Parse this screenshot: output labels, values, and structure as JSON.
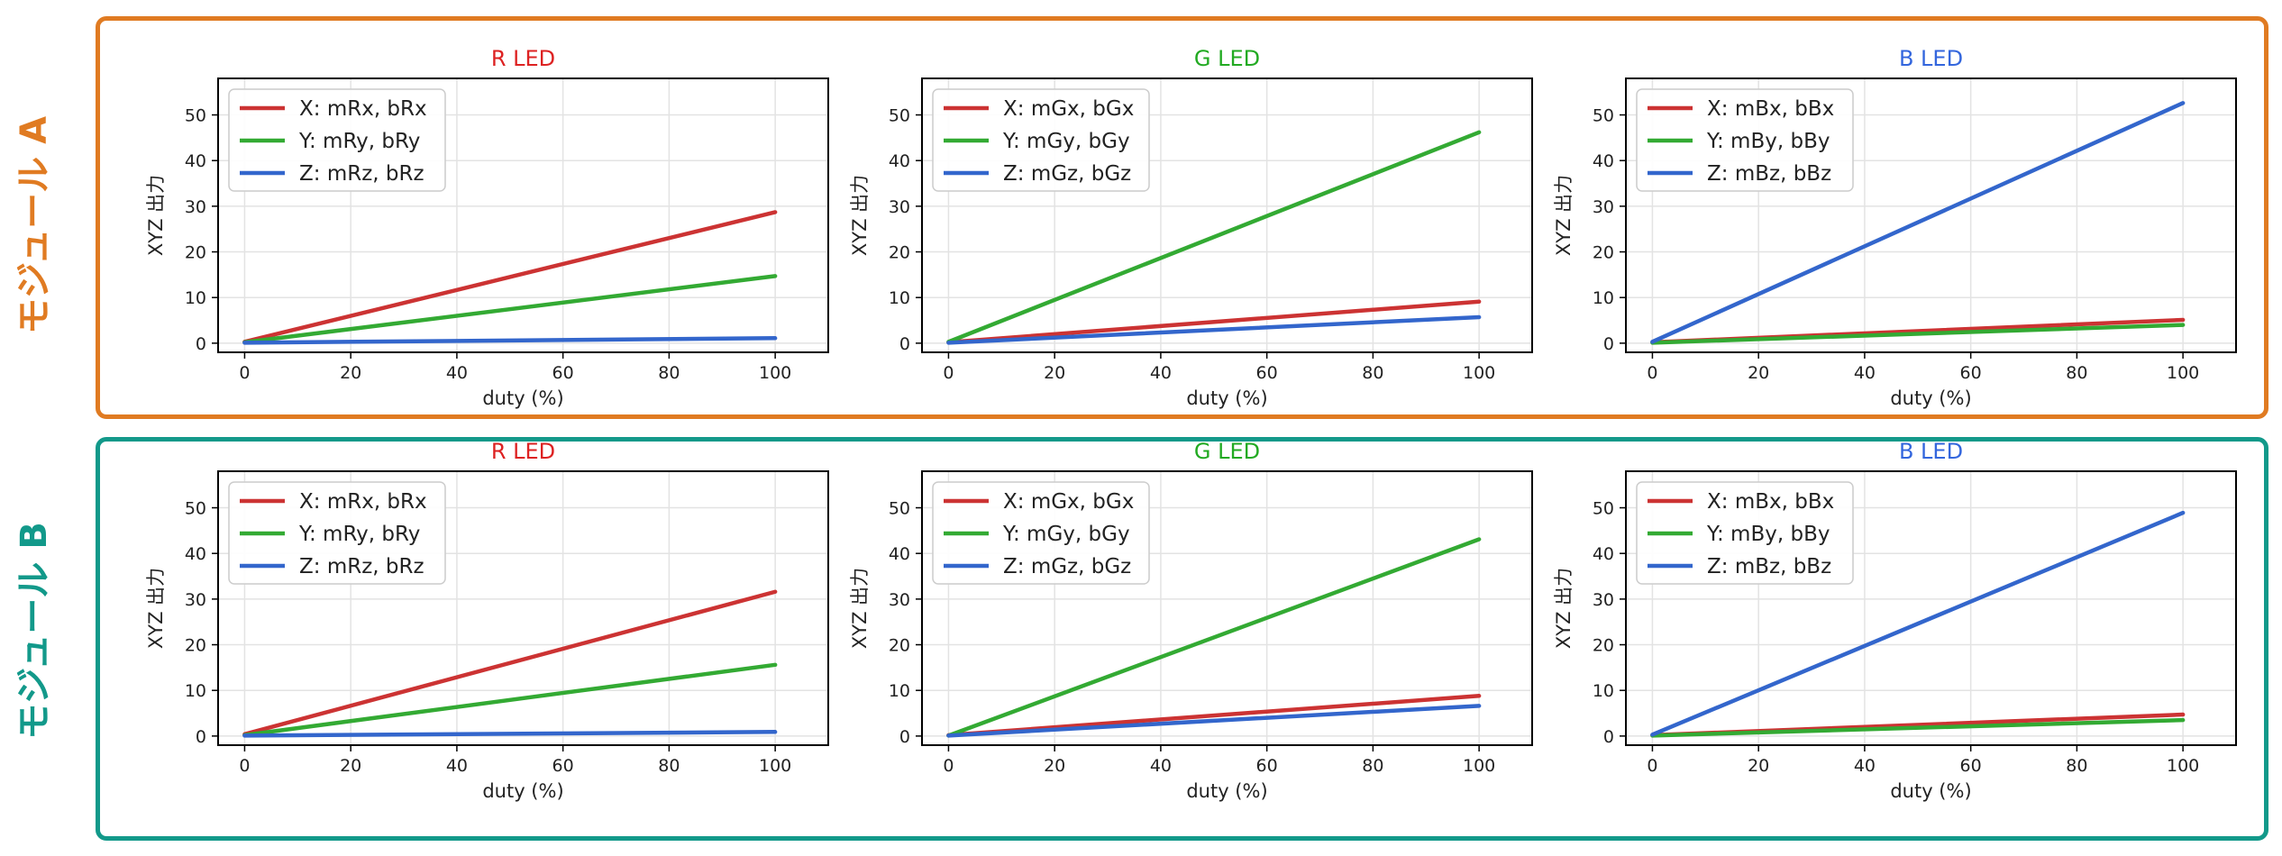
{
  "modules": [
    {
      "label": "モジュール A",
      "color": "#e07b22"
    },
    {
      "label": "モジュール B",
      "color": "#12998a"
    }
  ],
  "colors": {
    "red": "#cc3333",
    "green": "#33aa33",
    "blue": "#3366cc"
  },
  "chart_data": [
    {
      "type": "line",
      "module": "モジュール A",
      "title": "R LED",
      "title_color": "#dd2222",
      "xlabel": "duty (%)",
      "ylabel": "XYZ 出力",
      "xlim": [
        -5,
        110
      ],
      "ylim": [
        -2,
        58
      ],
      "xticks": [
        0,
        20,
        40,
        60,
        80,
        100
      ],
      "yticks": [
        0,
        10,
        20,
        30,
        40,
        50
      ],
      "grid": true,
      "legend": "top-left",
      "series": [
        {
          "name": "X: mRx, bRx",
          "color": "red",
          "x": [
            0,
            100
          ],
          "y": [
            0.3,
            28.7
          ]
        },
        {
          "name": "Y: mRy, bRy",
          "color": "green",
          "x": [
            0,
            100
          ],
          "y": [
            0.2,
            14.7
          ]
        },
        {
          "name": "Z: mRz, bRz",
          "color": "blue",
          "x": [
            0,
            100
          ],
          "y": [
            0.1,
            1.1
          ]
        }
      ]
    },
    {
      "type": "line",
      "module": "モジュール A",
      "title": "G LED",
      "title_color": "#22aa22",
      "xlabel": "duty (%)",
      "ylabel": "XYZ 出力",
      "xlim": [
        -5,
        110
      ],
      "ylim": [
        -2,
        58
      ],
      "xticks": [
        0,
        20,
        40,
        60,
        80,
        100
      ],
      "yticks": [
        0,
        10,
        20,
        30,
        40,
        50
      ],
      "grid": true,
      "legend": "top-left",
      "series": [
        {
          "name": "X: mGx, bGx",
          "color": "red",
          "x": [
            0,
            100
          ],
          "y": [
            0.2,
            9.1
          ]
        },
        {
          "name": "Y: mGy, bGy",
          "color": "green",
          "x": [
            0,
            100
          ],
          "y": [
            0.3,
            46.2
          ]
        },
        {
          "name": "Z: mGz, bGz",
          "color": "blue",
          "x": [
            0,
            100
          ],
          "y": [
            0.1,
            5.7
          ]
        }
      ]
    },
    {
      "type": "line",
      "module": "モジュール A",
      "title": "B LED",
      "title_color": "#3366dd",
      "xlabel": "duty (%)",
      "ylabel": "XYZ 出力",
      "xlim": [
        -5,
        110
      ],
      "ylim": [
        -2,
        58
      ],
      "xticks": [
        0,
        20,
        40,
        60,
        80,
        100
      ],
      "yticks": [
        0,
        10,
        20,
        30,
        40,
        50
      ],
      "grid": true,
      "legend": "top-left",
      "series": [
        {
          "name": "X: mBx, bBx",
          "color": "red",
          "x": [
            0,
            100
          ],
          "y": [
            0.2,
            5.1
          ]
        },
        {
          "name": "Y: mBy, bBy",
          "color": "green",
          "x": [
            0,
            100
          ],
          "y": [
            0.1,
            4.0
          ]
        },
        {
          "name": "Z: mBz, bBz",
          "color": "blue",
          "x": [
            0,
            100
          ],
          "y": [
            0.3,
            52.6
          ]
        }
      ]
    },
    {
      "type": "line",
      "module": "モジュール B",
      "title": "R LED",
      "title_color": "#dd2222",
      "xlabel": "duty (%)",
      "ylabel": "XYZ 出力",
      "xlim": [
        -5,
        110
      ],
      "ylim": [
        -2,
        58
      ],
      "xticks": [
        0,
        20,
        40,
        60,
        80,
        100
      ],
      "yticks": [
        0,
        10,
        20,
        30,
        40,
        50
      ],
      "grid": true,
      "legend": "top-left",
      "series": [
        {
          "name": "X: mRx, bRx",
          "color": "red",
          "x": [
            0,
            100
          ],
          "y": [
            0.4,
            31.6
          ]
        },
        {
          "name": "Y: mRy, bRy",
          "color": "green",
          "x": [
            0,
            100
          ],
          "y": [
            0.2,
            15.6
          ]
        },
        {
          "name": "Z: mRz, bRz",
          "color": "blue",
          "x": [
            0,
            100
          ],
          "y": [
            0.1,
            0.9
          ]
        }
      ]
    },
    {
      "type": "line",
      "module": "モジュール B",
      "title": "G LED",
      "title_color": "#22aa22",
      "xlabel": "duty (%)",
      "ylabel": "XYZ 出力",
      "xlim": [
        -5,
        110
      ],
      "ylim": [
        -2,
        58
      ],
      "xticks": [
        0,
        20,
        40,
        60,
        80,
        100
      ],
      "yticks": [
        0,
        10,
        20,
        30,
        40,
        50
      ],
      "grid": true,
      "legend": "top-left",
      "series": [
        {
          "name": "X: mGx, bGx",
          "color": "red",
          "x": [
            0,
            100
          ],
          "y": [
            0.2,
            8.8
          ]
        },
        {
          "name": "Y: mGy, bGy",
          "color": "green",
          "x": [
            0,
            100
          ],
          "y": [
            0.1,
            43.1
          ]
        },
        {
          "name": "Z: mGz, bGz",
          "color": "blue",
          "x": [
            0,
            100
          ],
          "y": [
            0.1,
            6.6
          ]
        }
      ]
    },
    {
      "type": "line",
      "module": "モジュール B",
      "title": "B LED",
      "title_color": "#3366dd",
      "xlabel": "duty (%)",
      "ylabel": "XYZ 出力",
      "xlim": [
        -5,
        110
      ],
      "ylim": [
        -2,
        58
      ],
      "xticks": [
        0,
        20,
        40,
        60,
        80,
        100
      ],
      "yticks": [
        0,
        10,
        20,
        30,
        40,
        50
      ],
      "grid": true,
      "legend": "top-left",
      "series": [
        {
          "name": "X: mBx, bBx",
          "color": "red",
          "x": [
            0,
            100
          ],
          "y": [
            0.2,
            4.7
          ]
        },
        {
          "name": "Y: mBy, bBy",
          "color": "green",
          "x": [
            0,
            100
          ],
          "y": [
            0.1,
            3.5
          ]
        },
        {
          "name": "Z: mBz, bBz",
          "color": "blue",
          "x": [
            0,
            100
          ],
          "y": [
            0.3,
            48.9
          ]
        }
      ]
    }
  ]
}
